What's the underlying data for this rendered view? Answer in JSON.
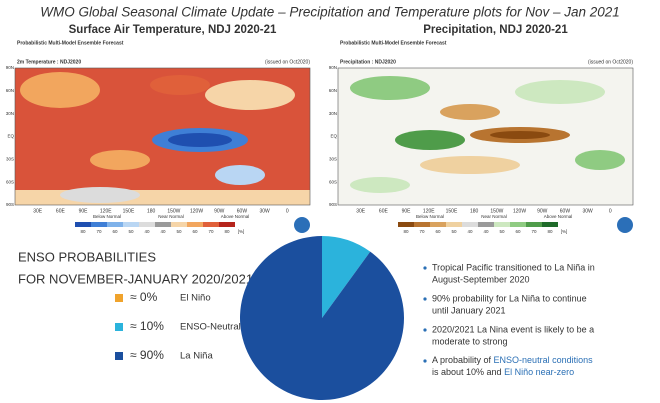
{
  "title": "WMO Global Seasonal Climate Update – Precipitation and Temperature plots for Nov – Jan 2021",
  "maps": [
    {
      "title": "Surface Air Temperature, NDJ 2020-21",
      "subtitle": "Probabilistic Multi-Model Ensemble Forecast",
      "variable": "2m Temperature : NDJ2020",
      "issued": "(issued on Oct2020)",
      "legend": [
        "Below Normal",
        "Near Normal",
        "Above Normal"
      ],
      "colors": [
        "#1f4fb0",
        "#3f7fd6",
        "#7fb2ea",
        "#b9d6f3",
        "#dcdcdc",
        "#9a9a9a",
        "#f6d5a8",
        "#f2a65e",
        "#e0603a",
        "#b5241c"
      ]
    },
    {
      "title": "Precipitation, NDJ 2020-21",
      "subtitle": "Probabilistic Multi-Model Ensemble Forecast",
      "variable": "Precipitation : NDJ2020",
      "issued": "(issued on Oct2020)",
      "legend": [
        "Below Normal",
        "Near Normal",
        "Above Normal"
      ],
      "colors": [
        "#8a4a10",
        "#b87430",
        "#d9a25e",
        "#efd1a0",
        "#dcdcdc",
        "#9a9a9a",
        "#cde8c0",
        "#8fcb82",
        "#4f9c4a",
        "#1f6b2a"
      ]
    }
  ],
  "lon_labels": [
    "30E",
    "60E",
    "90E",
    "120E",
    "150E",
    "180",
    "150W",
    "120W",
    "90W",
    "60W",
    "30W",
    "0"
  ],
  "lat_labels": [
    "90N",
    "60N",
    "30N",
    "EQ",
    "30S",
    "60S",
    "90S"
  ],
  "scale_labels": [
    "80",
    "70",
    "60",
    "50",
    "40",
    "40",
    "50",
    "60",
    "70",
    "80",
    "[%]"
  ],
  "enso_heading": [
    "ENSO PROBABILITIES",
    "FOR NOVEMBER-JANUARY 2020/2021"
  ],
  "chart_data": {
    "type": "pie",
    "categories": [
      "El Niño",
      "ENSO-Neutral",
      "La Niña"
    ],
    "values": [
      0,
      10,
      90
    ],
    "value_labels": [
      "≈ 0%",
      "≈ 10%",
      "≈ 90%"
    ],
    "colors": [
      "#f0a32c",
      "#2bb3dc",
      "#1b4f9e"
    ]
  },
  "bullets": [
    [
      "Tropical Pacific transitioned to La Niña in",
      "August-September 2020"
    ],
    [
      "90% probability for La Niña to continue",
      "until January 2021"
    ],
    [
      "2020/2021 La Nina event is likely to be a",
      "moderate to strong"
    ],
    [
      [
        "A probability of ",
        "ENSO-neutral conditions"
      ],
      [
        "is about 10%",
        " and ",
        "El Niño near-zero"
      ]
    ]
  ]
}
